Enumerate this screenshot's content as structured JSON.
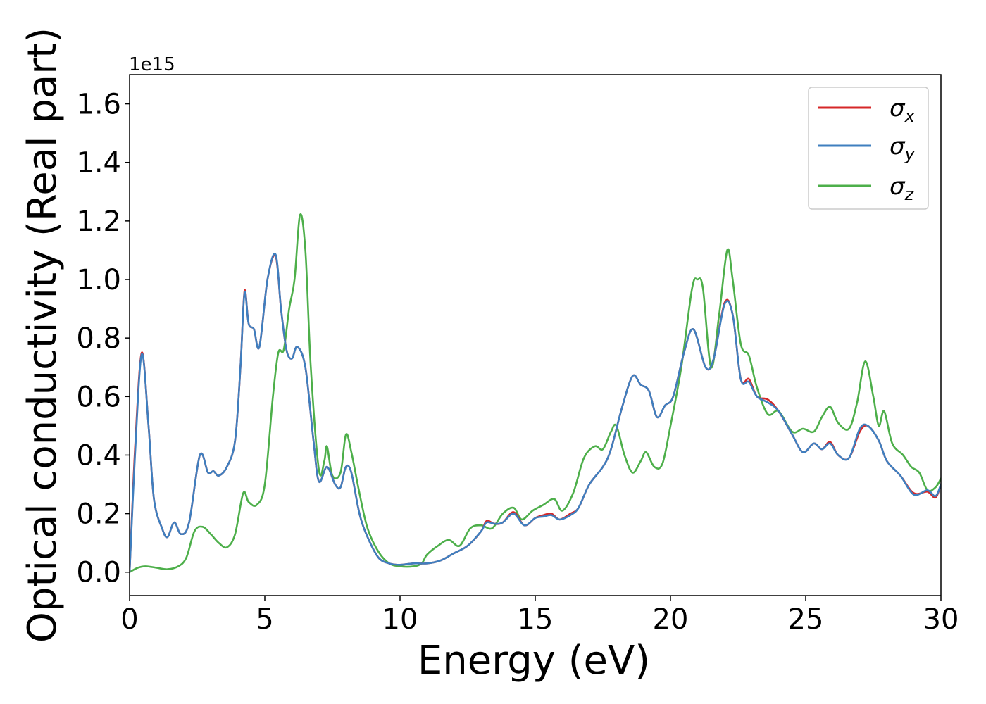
{
  "chart_data": {
    "type": "line",
    "xlabel": "Energy (eV)",
    "ylabel": "Optical conductivity (Real part)",
    "y_offset_label": "1e15",
    "xlim": [
      0,
      30
    ],
    "ylim": [
      -0.08,
      1.7
    ],
    "x_ticks": [
      0,
      5,
      10,
      15,
      20,
      25,
      30
    ],
    "x_tick_labels": [
      "0",
      "5",
      "10",
      "15",
      "20",
      "25",
      "30"
    ],
    "y_ticks": [
      0.0,
      0.2,
      0.4,
      0.6,
      0.8,
      1.0,
      1.2,
      1.4,
      1.6
    ],
    "y_tick_labels": [
      "0.0",
      "0.2",
      "0.4",
      "0.6",
      "0.8",
      "1.0",
      "1.2",
      "1.4",
      "1.6"
    ],
    "grid": false,
    "legend_position": "top-right",
    "series": [
      {
        "name": "σx",
        "symbol": "σ",
        "subscript": "x",
        "color": "#d62728",
        "points": [
          [
            0,
            0.0
          ],
          [
            0.2,
            0.42
          ],
          [
            0.45,
            0.75
          ],
          [
            0.7,
            0.5
          ],
          [
            0.9,
            0.25
          ],
          [
            1.2,
            0.15
          ],
          [
            1.4,
            0.12
          ],
          [
            1.65,
            0.17
          ],
          [
            1.9,
            0.13
          ],
          [
            2.2,
            0.17
          ],
          [
            2.6,
            0.4
          ],
          [
            2.9,
            0.34
          ],
          [
            3.1,
            0.345
          ],
          [
            3.3,
            0.33
          ],
          [
            3.6,
            0.36
          ],
          [
            3.9,
            0.45
          ],
          [
            4.1,
            0.7
          ],
          [
            4.25,
            0.96
          ],
          [
            4.4,
            0.85
          ],
          [
            4.6,
            0.83
          ],
          [
            4.8,
            0.77
          ],
          [
            5.1,
            1.0
          ],
          [
            5.4,
            1.08
          ],
          [
            5.6,
            0.9
          ],
          [
            5.8,
            0.76
          ],
          [
            6.0,
            0.73
          ],
          [
            6.2,
            0.77
          ],
          [
            6.5,
            0.7
          ],
          [
            6.8,
            0.45
          ],
          [
            7.0,
            0.31
          ],
          [
            7.3,
            0.36
          ],
          [
            7.6,
            0.3
          ],
          [
            7.8,
            0.29
          ],
          [
            8.0,
            0.36
          ],
          [
            8.2,
            0.34
          ],
          [
            8.5,
            0.2
          ],
          [
            8.8,
            0.12
          ],
          [
            9.2,
            0.05
          ],
          [
            9.6,
            0.03
          ],
          [
            10.0,
            0.025
          ],
          [
            10.5,
            0.03
          ],
          [
            11.0,
            0.03
          ],
          [
            11.5,
            0.04
          ],
          [
            12.0,
            0.065
          ],
          [
            12.5,
            0.09
          ],
          [
            13.0,
            0.14
          ],
          [
            13.2,
            0.175
          ],
          [
            13.5,
            0.165
          ],
          [
            13.8,
            0.17
          ],
          [
            14.2,
            0.205
          ],
          [
            14.6,
            0.16
          ],
          [
            15.0,
            0.185
          ],
          [
            15.3,
            0.195
          ],
          [
            15.6,
            0.2
          ],
          [
            15.9,
            0.18
          ],
          [
            16.3,
            0.2
          ],
          [
            16.6,
            0.22
          ],
          [
            17.0,
            0.3
          ],
          [
            17.5,
            0.36
          ],
          [
            17.8,
            0.42
          ],
          [
            18.2,
            0.56
          ],
          [
            18.6,
            0.67
          ],
          [
            18.9,
            0.64
          ],
          [
            19.2,
            0.62
          ],
          [
            19.5,
            0.53
          ],
          [
            19.8,
            0.57
          ],
          [
            20.1,
            0.6
          ],
          [
            20.5,
            0.75
          ],
          [
            20.85,
            0.83
          ],
          [
            21.3,
            0.7
          ],
          [
            21.6,
            0.73
          ],
          [
            22.0,
            0.92
          ],
          [
            22.3,
            0.88
          ],
          [
            22.6,
            0.66
          ],
          [
            22.9,
            0.66
          ],
          [
            23.2,
            0.6
          ],
          [
            23.6,
            0.59
          ],
          [
            24.0,
            0.55
          ],
          [
            24.5,
            0.47
          ],
          [
            24.9,
            0.41
          ],
          [
            25.3,
            0.44
          ],
          [
            25.6,
            0.42
          ],
          [
            25.9,
            0.445
          ],
          [
            26.2,
            0.4
          ],
          [
            26.6,
            0.39
          ],
          [
            27.0,
            0.48
          ],
          [
            27.3,
            0.5
          ],
          [
            27.7,
            0.45
          ],
          [
            28.0,
            0.38
          ],
          [
            28.5,
            0.33
          ],
          [
            29.0,
            0.27
          ],
          [
            29.5,
            0.275
          ],
          [
            29.8,
            0.255
          ],
          [
            30.0,
            0.3
          ]
        ]
      },
      {
        "name": "σy",
        "symbol": "σ",
        "subscript": "y",
        "color": "#3f7fbf",
        "points": [
          [
            0,
            0.0
          ],
          [
            0.2,
            0.4
          ],
          [
            0.45,
            0.745
          ],
          [
            0.7,
            0.5
          ],
          [
            0.9,
            0.25
          ],
          [
            1.2,
            0.15
          ],
          [
            1.4,
            0.12
          ],
          [
            1.65,
            0.17
          ],
          [
            1.9,
            0.13
          ],
          [
            2.2,
            0.17
          ],
          [
            2.6,
            0.4
          ],
          [
            2.9,
            0.34
          ],
          [
            3.1,
            0.345
          ],
          [
            3.3,
            0.33
          ],
          [
            3.6,
            0.36
          ],
          [
            3.9,
            0.45
          ],
          [
            4.1,
            0.7
          ],
          [
            4.25,
            0.955
          ],
          [
            4.4,
            0.85
          ],
          [
            4.6,
            0.83
          ],
          [
            4.8,
            0.77
          ],
          [
            5.1,
            1.0
          ],
          [
            5.4,
            1.085
          ],
          [
            5.6,
            0.9
          ],
          [
            5.8,
            0.76
          ],
          [
            6.0,
            0.73
          ],
          [
            6.2,
            0.77
          ],
          [
            6.5,
            0.7
          ],
          [
            6.8,
            0.45
          ],
          [
            7.0,
            0.31
          ],
          [
            7.3,
            0.36
          ],
          [
            7.6,
            0.3
          ],
          [
            7.8,
            0.29
          ],
          [
            8.0,
            0.36
          ],
          [
            8.2,
            0.34
          ],
          [
            8.5,
            0.2
          ],
          [
            8.8,
            0.12
          ],
          [
            9.2,
            0.05
          ],
          [
            9.6,
            0.03
          ],
          [
            10.0,
            0.025
          ],
          [
            10.5,
            0.03
          ],
          [
            11.0,
            0.03
          ],
          [
            11.5,
            0.04
          ],
          [
            12.0,
            0.065
          ],
          [
            12.5,
            0.09
          ],
          [
            13.0,
            0.14
          ],
          [
            13.2,
            0.17
          ],
          [
            13.5,
            0.165
          ],
          [
            13.8,
            0.17
          ],
          [
            14.2,
            0.2
          ],
          [
            14.6,
            0.16
          ],
          [
            15.0,
            0.185
          ],
          [
            15.3,
            0.19
          ],
          [
            15.6,
            0.195
          ],
          [
            15.9,
            0.18
          ],
          [
            16.3,
            0.195
          ],
          [
            16.6,
            0.22
          ],
          [
            17.0,
            0.3
          ],
          [
            17.5,
            0.36
          ],
          [
            17.8,
            0.42
          ],
          [
            18.2,
            0.56
          ],
          [
            18.6,
            0.67
          ],
          [
            18.9,
            0.64
          ],
          [
            19.2,
            0.62
          ],
          [
            19.5,
            0.53
          ],
          [
            19.8,
            0.57
          ],
          [
            20.1,
            0.6
          ],
          [
            20.5,
            0.75
          ],
          [
            20.85,
            0.83
          ],
          [
            21.3,
            0.7
          ],
          [
            21.6,
            0.73
          ],
          [
            22.0,
            0.915
          ],
          [
            22.3,
            0.88
          ],
          [
            22.6,
            0.66
          ],
          [
            22.9,
            0.65
          ],
          [
            23.2,
            0.6
          ],
          [
            23.6,
            0.58
          ],
          [
            24.0,
            0.55
          ],
          [
            24.5,
            0.47
          ],
          [
            24.9,
            0.41
          ],
          [
            25.3,
            0.44
          ],
          [
            25.6,
            0.42
          ],
          [
            25.9,
            0.44
          ],
          [
            26.2,
            0.4
          ],
          [
            26.6,
            0.39
          ],
          [
            27.0,
            0.49
          ],
          [
            27.3,
            0.5
          ],
          [
            27.7,
            0.45
          ],
          [
            28.0,
            0.38
          ],
          [
            28.5,
            0.33
          ],
          [
            29.0,
            0.265
          ],
          [
            29.5,
            0.28
          ],
          [
            29.8,
            0.26
          ],
          [
            30.0,
            0.3
          ]
        ]
      },
      {
        "name": "σz",
        "symbol": "σ",
        "subscript": "z",
        "color": "#4daf4a",
        "points": [
          [
            0,
            0.0
          ],
          [
            0.3,
            0.015
          ],
          [
            0.6,
            0.02
          ],
          [
            1.0,
            0.015
          ],
          [
            1.4,
            0.01
          ],
          [
            1.8,
            0.02
          ],
          [
            2.1,
            0.05
          ],
          [
            2.4,
            0.14
          ],
          [
            2.7,
            0.155
          ],
          [
            3.0,
            0.13
          ],
          [
            3.3,
            0.1
          ],
          [
            3.6,
            0.085
          ],
          [
            3.9,
            0.13
          ],
          [
            4.2,
            0.27
          ],
          [
            4.4,
            0.24
          ],
          [
            4.7,
            0.23
          ],
          [
            5.0,
            0.3
          ],
          [
            5.3,
            0.6
          ],
          [
            5.5,
            0.75
          ],
          [
            5.7,
            0.76
          ],
          [
            5.9,
            0.9
          ],
          [
            6.1,
            1.0
          ],
          [
            6.3,
            1.22
          ],
          [
            6.5,
            1.1
          ],
          [
            6.7,
            0.7
          ],
          [
            7.0,
            0.35
          ],
          [
            7.2,
            0.38
          ],
          [
            7.3,
            0.43
          ],
          [
            7.5,
            0.33
          ],
          [
            7.8,
            0.34
          ],
          [
            8.0,
            0.47
          ],
          [
            8.2,
            0.41
          ],
          [
            8.5,
            0.27
          ],
          [
            8.8,
            0.15
          ],
          [
            9.2,
            0.07
          ],
          [
            9.6,
            0.03
          ],
          [
            10.0,
            0.02
          ],
          [
            10.5,
            0.02
          ],
          [
            10.8,
            0.03
          ],
          [
            11.0,
            0.06
          ],
          [
            11.4,
            0.09
          ],
          [
            11.8,
            0.11
          ],
          [
            12.2,
            0.09
          ],
          [
            12.6,
            0.15
          ],
          [
            13.0,
            0.16
          ],
          [
            13.4,
            0.15
          ],
          [
            13.8,
            0.2
          ],
          [
            14.2,
            0.22
          ],
          [
            14.5,
            0.18
          ],
          [
            14.9,
            0.21
          ],
          [
            15.3,
            0.23
          ],
          [
            15.7,
            0.25
          ],
          [
            16.0,
            0.21
          ],
          [
            16.4,
            0.27
          ],
          [
            16.8,
            0.39
          ],
          [
            17.2,
            0.43
          ],
          [
            17.5,
            0.42
          ],
          [
            17.8,
            0.48
          ],
          [
            18.0,
            0.5
          ],
          [
            18.3,
            0.4
          ],
          [
            18.6,
            0.34
          ],
          [
            18.9,
            0.38
          ],
          [
            19.1,
            0.41
          ],
          [
            19.4,
            0.36
          ],
          [
            19.7,
            0.37
          ],
          [
            20.0,
            0.5
          ],
          [
            20.4,
            0.7
          ],
          [
            20.8,
            0.97
          ],
          [
            21.0,
            1.0
          ],
          [
            21.2,
            0.97
          ],
          [
            21.5,
            0.7
          ],
          [
            21.8,
            0.88
          ],
          [
            22.1,
            1.1
          ],
          [
            22.3,
            1.0
          ],
          [
            22.6,
            0.78
          ],
          [
            22.9,
            0.74
          ],
          [
            23.2,
            0.63
          ],
          [
            23.6,
            0.54
          ],
          [
            24.0,
            0.55
          ],
          [
            24.5,
            0.48
          ],
          [
            24.9,
            0.49
          ],
          [
            25.3,
            0.48
          ],
          [
            25.6,
            0.53
          ],
          [
            25.9,
            0.565
          ],
          [
            26.2,
            0.51
          ],
          [
            26.6,
            0.49
          ],
          [
            26.9,
            0.58
          ],
          [
            27.2,
            0.72
          ],
          [
            27.5,
            0.6
          ],
          [
            27.7,
            0.5
          ],
          [
            27.9,
            0.55
          ],
          [
            28.2,
            0.44
          ],
          [
            28.6,
            0.4
          ],
          [
            28.9,
            0.36
          ],
          [
            29.2,
            0.34
          ],
          [
            29.5,
            0.28
          ],
          [
            29.8,
            0.29
          ],
          [
            30.0,
            0.32
          ]
        ]
      }
    ]
  }
}
